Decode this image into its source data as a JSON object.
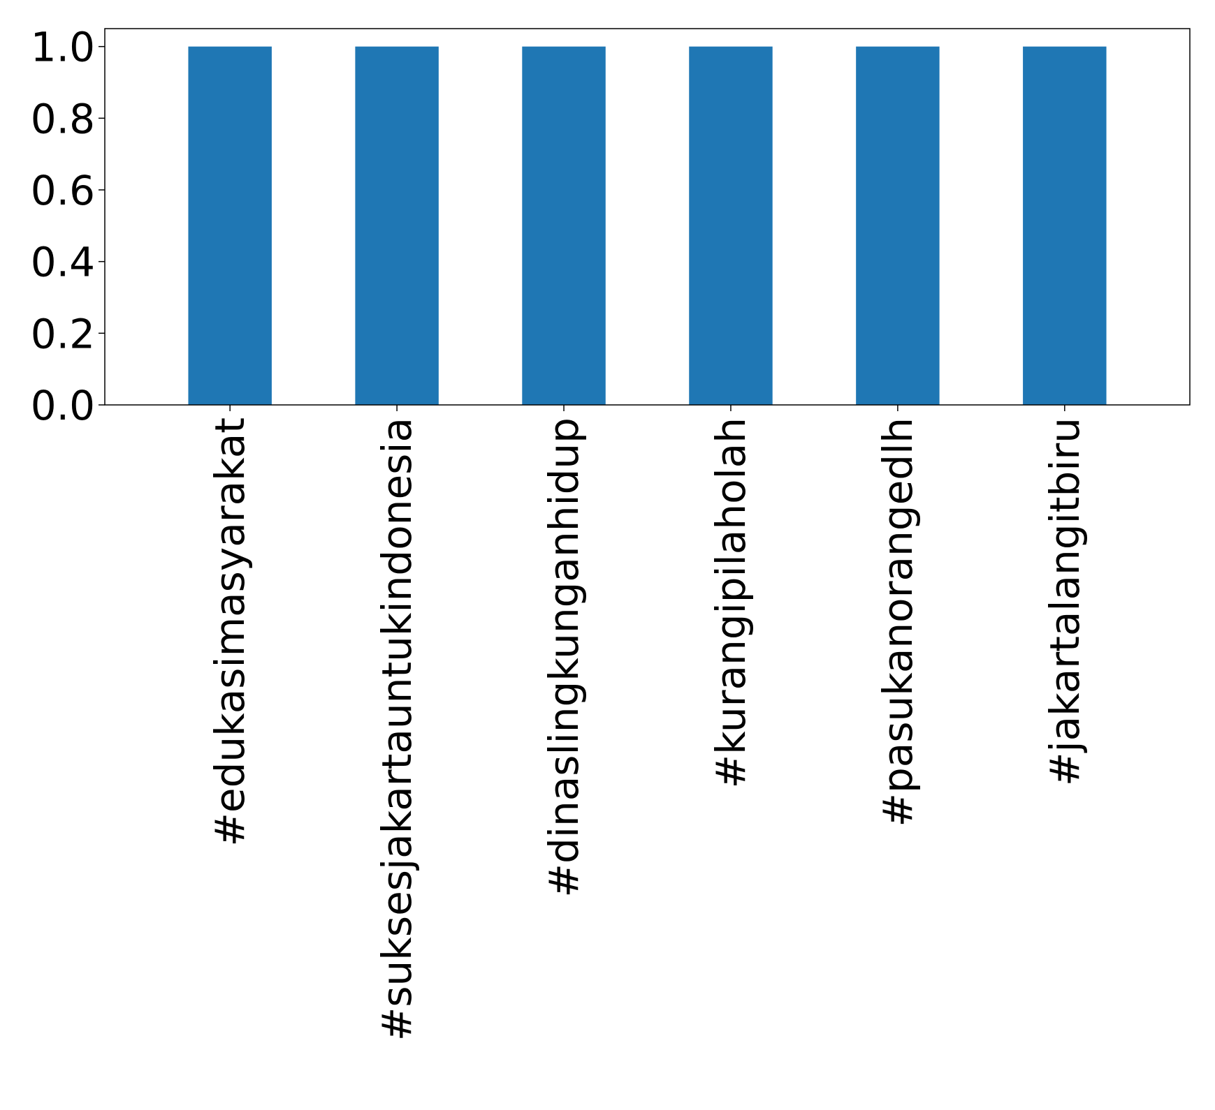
{
  "chart_data": {
    "type": "bar",
    "title": "",
    "xlabel": "",
    "ylabel": "",
    "categories": [
      "#edukasimasyarakat",
      "#suksesjakartauntukindonesia",
      "#dinaslingkunganhidup",
      "#kurangipilaholah",
      "#pasukanorangedlh",
      "#jakartalangitbiru"
    ],
    "values": [
      1,
      1,
      1,
      1,
      1,
      1
    ],
    "ylim": [
      0,
      1.05
    ],
    "yticks": [
      "0.0",
      "0.2",
      "0.4",
      "0.6",
      "0.8",
      "1.0"
    ],
    "grid": false,
    "legend": "none",
    "bar_color": "#1f77b4"
  }
}
